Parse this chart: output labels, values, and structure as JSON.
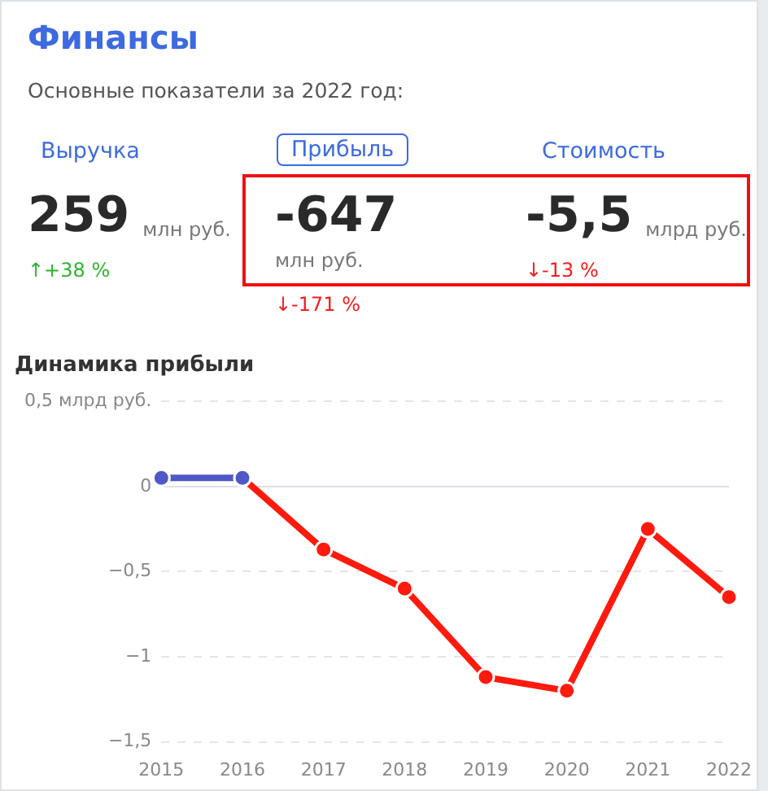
{
  "chart_data": [
    {
      "type": "other",
      "title": "Финансы",
      "subtitle": "Основные показатели за 2022 год:",
      "annotations": [
        "Выручка",
        "Прибыль",
        "Стоимость",
        "259",
        "млн руб.",
        "↑+38 %",
        "-647",
        "млн руб.",
        "↓-171 %",
        "-5,5",
        "млрд руб.",
        "↓-13 %"
      ]
    },
    {
      "type": "line",
      "title": "Динамика прибыли",
      "categories": [
        "2015",
        "2016",
        "2017",
        "2018",
        "2019",
        "2020",
        "2021",
        "2022"
      ],
      "series": [
        {
          "color": "#5058c8",
          "values": [
            0.05,
            0.05,
            null,
            null,
            null,
            null,
            null,
            null
          ]
        },
        {
          "color": "#ff1a0d",
          "values": [
            null,
            0.05,
            -0.37,
            -0.6,
            -1.12,
            -1.2,
            -0.25,
            -0.65
          ]
        }
      ],
      "ylim": [
        -1.5,
        0.5
      ],
      "yticks": [
        {
          "value": 0.5,
          "label": "0,5 млрд руб."
        },
        0,
        {
          "value": -0.5,
          "label": "−0,5"
        },
        {
          "value": -1,
          "label": "−1"
        },
        {
          "value": -1.5,
          "label": "−1,5"
        }
      ],
      "grid": "y",
      "marker": "circle",
      "line_style": "solid"
    }
  ]
}
